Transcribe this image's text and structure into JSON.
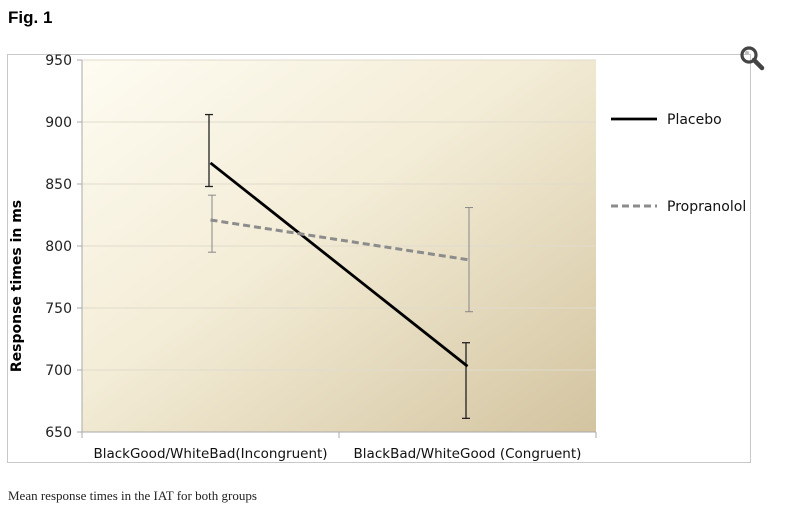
{
  "figure": {
    "title": "Fig. 1",
    "caption": "Mean response times in the IAT for both groups",
    "zoom_icon": "magnifier-icon"
  },
  "chart_data": {
    "type": "line",
    "title": "",
    "xlabel": "",
    "ylabel": "Response times in ms",
    "ylim": [
      650,
      950
    ],
    "yticks": [
      650,
      700,
      750,
      800,
      850,
      900,
      950
    ],
    "categories": [
      "BlackGood/WhiteBad(Incongruent)",
      "BlackBad/WhiteGood (Congruent)"
    ],
    "grid": true,
    "legend_position": "right",
    "series": [
      {
        "name": "Placebo",
        "values": [
          867,
          703
        ],
        "error_low": [
          848,
          661
        ],
        "error_high": [
          906,
          722
        ],
        "color": "#000000",
        "style": "solid"
      },
      {
        "name": "Propranolol",
        "values": [
          821,
          789
        ],
        "error_low": [
          795,
          747
        ],
        "error_high": [
          841,
          831
        ],
        "color": "#8c8c8c",
        "style": "dashed"
      }
    ],
    "colors": {
      "plot_bg_light": "#fcf9ec",
      "plot_bg_dark": "#d6c9a5",
      "grid": "#e0dbcc",
      "axis": "#aaaaaa"
    }
  }
}
